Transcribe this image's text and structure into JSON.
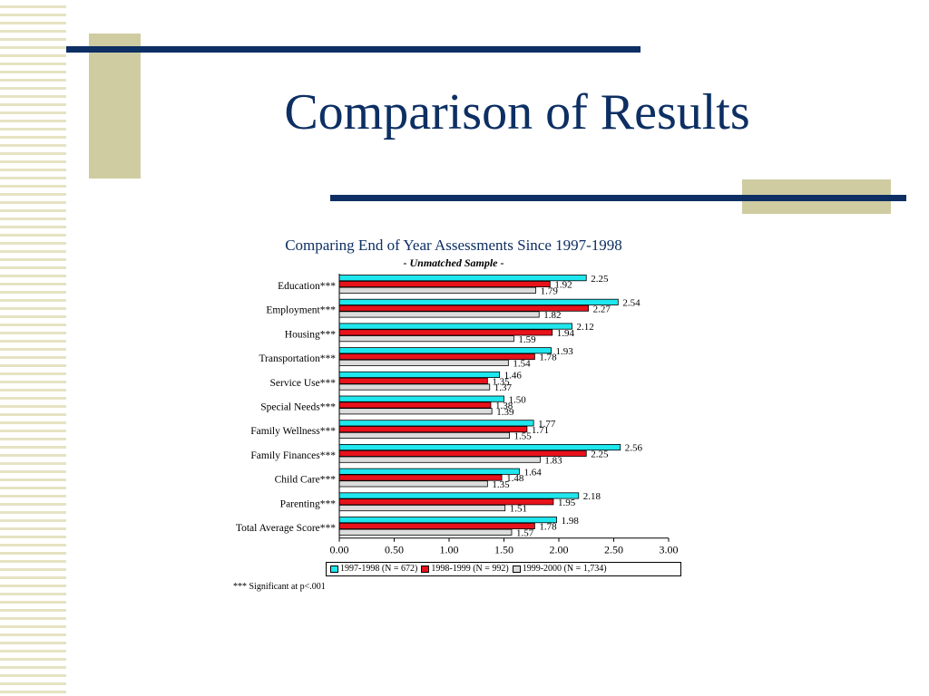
{
  "slide": {
    "title": "Comparison of Results"
  },
  "colors": {
    "navy": "#0d2f63",
    "khaki": "#cfcca2",
    "series1": "#1fe7ee",
    "series2": "#e8121b",
    "series3": "#dcdcdc"
  },
  "chart_data": {
    "type": "bar",
    "orientation": "horizontal",
    "title": "Comparing End of Year Assessments Since 1997-1998",
    "subtitle": "- Unmatched Sample -",
    "categories": [
      "Education***",
      "Employment***",
      "Housing***",
      "Transportation***",
      "Service Use***",
      "Special Needs***",
      "Family Wellness***",
      "Family Finances***",
      "Child Care***",
      "Parenting***",
      "Total Average Score***"
    ],
    "series": [
      {
        "name": "1997-1998 (N = 672)",
        "color": "#1fe7ee",
        "values": [
          2.25,
          2.54,
          2.12,
          1.93,
          1.46,
          1.5,
          1.77,
          2.56,
          1.64,
          2.18,
          1.98
        ]
      },
      {
        "name": "1998-1999 (N = 992)",
        "color": "#e8121b",
        "values": [
          1.92,
          2.27,
          1.94,
          1.78,
          1.35,
          1.38,
          1.71,
          2.25,
          1.48,
          1.95,
          1.78
        ]
      },
      {
        "name": "1999-2000 (N = 1,734)",
        "color": "#dcdcdc",
        "values": [
          1.79,
          1.82,
          1.59,
          1.54,
          1.37,
          1.39,
          1.55,
          1.83,
          1.35,
          1.51,
          1.57
        ]
      }
    ],
    "xlim": [
      0,
      3
    ],
    "xticks": [
      "0.00",
      "0.50",
      "1.00",
      "1.50",
      "2.00",
      "2.50",
      "3.00"
    ],
    "xlabel": "",
    "ylabel": "",
    "grid": false,
    "legend_position": "bottom",
    "footnote": "*** Significant at p<.001"
  }
}
